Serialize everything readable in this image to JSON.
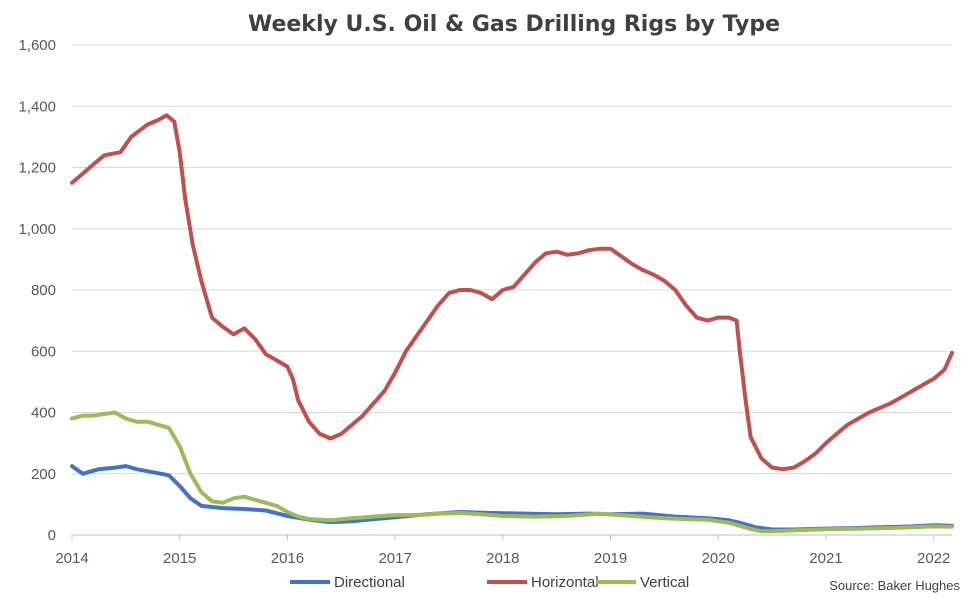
{
  "chart_data": {
    "type": "line",
    "title": "Weekly U.S. Oil & Gas Drilling Rigs by Type",
    "source": "Source: Baker Hughes",
    "xlabel": "",
    "ylabel": "",
    "xlim": [
      2014,
      2022.17
    ],
    "ylim": [
      0,
      1600
    ],
    "x_ticks": [
      2014,
      2015,
      2016,
      2017,
      2018,
      2019,
      2020,
      2021,
      2022
    ],
    "y_ticks": [
      0,
      200,
      400,
      600,
      800,
      1000,
      1200,
      1400,
      1600
    ],
    "y_tick_labels": [
      "0",
      "200",
      "400",
      "600",
      "800",
      "1,000",
      "1,200",
      "1,400",
      "1,600"
    ],
    "grid": "horizontal",
    "legend": "bottom",
    "series": [
      {
        "name": "Directional",
        "color": "#4472C4",
        "points": [
          [
            2014.0,
            225
          ],
          [
            2014.1,
            200
          ],
          [
            2014.25,
            215
          ],
          [
            2014.4,
            220
          ],
          [
            2014.5,
            225
          ],
          [
            2014.6,
            215
          ],
          [
            2014.75,
            205
          ],
          [
            2014.9,
            195
          ],
          [
            2015.0,
            160
          ],
          [
            2015.1,
            120
          ],
          [
            2015.2,
            95
          ],
          [
            2015.4,
            88
          ],
          [
            2015.6,
            85
          ],
          [
            2015.8,
            80
          ],
          [
            2016.0,
            62
          ],
          [
            2016.2,
            50
          ],
          [
            2016.4,
            42
          ],
          [
            2016.6,
            45
          ],
          [
            2016.8,
            52
          ],
          [
            2017.0,
            58
          ],
          [
            2017.3,
            68
          ],
          [
            2017.6,
            75
          ],
          [
            2017.9,
            72
          ],
          [
            2018.2,
            70
          ],
          [
            2018.5,
            68
          ],
          [
            2018.8,
            70
          ],
          [
            2019.0,
            68
          ],
          [
            2019.3,
            70
          ],
          [
            2019.6,
            60
          ],
          [
            2019.9,
            55
          ],
          [
            2020.1,
            48
          ],
          [
            2020.2,
            40
          ],
          [
            2020.35,
            25
          ],
          [
            2020.5,
            18
          ],
          [
            2020.7,
            18
          ],
          [
            2020.9,
            20
          ],
          [
            2021.2,
            22
          ],
          [
            2021.5,
            25
          ],
          [
            2021.8,
            28
          ],
          [
            2022.0,
            32
          ],
          [
            2022.17,
            30
          ]
        ]
      },
      {
        "name": "Horizontal",
        "color": "#C0504D",
        "points": [
          [
            2014.0,
            1150
          ],
          [
            2014.1,
            1180
          ],
          [
            2014.2,
            1210
          ],
          [
            2014.3,
            1240
          ],
          [
            2014.45,
            1250
          ],
          [
            2014.55,
            1300
          ],
          [
            2014.7,
            1340
          ],
          [
            2014.8,
            1355
          ],
          [
            2014.88,
            1370
          ],
          [
            2014.95,
            1350
          ],
          [
            2015.0,
            1250
          ],
          [
            2015.05,
            1100
          ],
          [
            2015.12,
            950
          ],
          [
            2015.2,
            830
          ],
          [
            2015.3,
            710
          ],
          [
            2015.4,
            680
          ],
          [
            2015.5,
            655
          ],
          [
            2015.6,
            675
          ],
          [
            2015.7,
            640
          ],
          [
            2015.8,
            590
          ],
          [
            2015.9,
            570
          ],
          [
            2016.0,
            550
          ],
          [
            2016.05,
            510
          ],
          [
            2016.1,
            440
          ],
          [
            2016.2,
            370
          ],
          [
            2016.3,
            330
          ],
          [
            2016.4,
            315
          ],
          [
            2016.5,
            330
          ],
          [
            2016.6,
            360
          ],
          [
            2016.7,
            390
          ],
          [
            2016.8,
            430
          ],
          [
            2016.9,
            470
          ],
          [
            2017.0,
            530
          ],
          [
            2017.1,
            600
          ],
          [
            2017.2,
            650
          ],
          [
            2017.3,
            700
          ],
          [
            2017.4,
            750
          ],
          [
            2017.5,
            790
          ],
          [
            2017.6,
            800
          ],
          [
            2017.7,
            800
          ],
          [
            2017.8,
            790
          ],
          [
            2017.9,
            770
          ],
          [
            2018.0,
            800
          ],
          [
            2018.1,
            810
          ],
          [
            2018.2,
            850
          ],
          [
            2018.3,
            890
          ],
          [
            2018.4,
            920
          ],
          [
            2018.5,
            925
          ],
          [
            2018.6,
            915
          ],
          [
            2018.7,
            920
          ],
          [
            2018.8,
            930
          ],
          [
            2018.9,
            935
          ],
          [
            2019.0,
            935
          ],
          [
            2019.1,
            910
          ],
          [
            2019.2,
            885
          ],
          [
            2019.3,
            865
          ],
          [
            2019.4,
            850
          ],
          [
            2019.5,
            830
          ],
          [
            2019.6,
            800
          ],
          [
            2019.7,
            750
          ],
          [
            2019.8,
            710
          ],
          [
            2019.9,
            700
          ],
          [
            2020.0,
            710
          ],
          [
            2020.1,
            710
          ],
          [
            2020.17,
            700
          ],
          [
            2020.2,
            600
          ],
          [
            2020.25,
            450
          ],
          [
            2020.3,
            320
          ],
          [
            2020.4,
            250
          ],
          [
            2020.5,
            220
          ],
          [
            2020.6,
            215
          ],
          [
            2020.7,
            220
          ],
          [
            2020.8,
            240
          ],
          [
            2020.9,
            265
          ],
          [
            2021.0,
            300
          ],
          [
            2021.1,
            330
          ],
          [
            2021.2,
            360
          ],
          [
            2021.3,
            380
          ],
          [
            2021.4,
            400
          ],
          [
            2021.5,
            415
          ],
          [
            2021.6,
            430
          ],
          [
            2021.7,
            450
          ],
          [
            2021.8,
            470
          ],
          [
            2021.9,
            490
          ],
          [
            2022.0,
            510
          ],
          [
            2022.1,
            540
          ],
          [
            2022.17,
            595
          ]
        ]
      },
      {
        "name": "Vertical",
        "color": "#9BBB59",
        "points": [
          [
            2014.0,
            380
          ],
          [
            2014.1,
            390
          ],
          [
            2014.2,
            390
          ],
          [
            2014.3,
            395
          ],
          [
            2014.4,
            400
          ],
          [
            2014.5,
            380
          ],
          [
            2014.6,
            370
          ],
          [
            2014.7,
            370
          ],
          [
            2014.8,
            360
          ],
          [
            2014.9,
            350
          ],
          [
            2015.0,
            290
          ],
          [
            2015.1,
            200
          ],
          [
            2015.2,
            140
          ],
          [
            2015.3,
            110
          ],
          [
            2015.4,
            105
          ],
          [
            2015.5,
            120
          ],
          [
            2015.6,
            125
          ],
          [
            2015.7,
            115
          ],
          [
            2015.8,
            105
          ],
          [
            2015.9,
            95
          ],
          [
            2016.0,
            75
          ],
          [
            2016.1,
            60
          ],
          [
            2016.2,
            52
          ],
          [
            2016.4,
            48
          ],
          [
            2016.6,
            55
          ],
          [
            2016.8,
            60
          ],
          [
            2017.0,
            65
          ],
          [
            2017.2,
            65
          ],
          [
            2017.4,
            70
          ],
          [
            2017.6,
            72
          ],
          [
            2017.8,
            68
          ],
          [
            2018.0,
            62
          ],
          [
            2018.3,
            60
          ],
          [
            2018.6,
            62
          ],
          [
            2018.9,
            70
          ],
          [
            2019.2,
            62
          ],
          [
            2019.5,
            55
          ],
          [
            2019.7,
            52
          ],
          [
            2019.9,
            50
          ],
          [
            2020.1,
            40
          ],
          [
            2020.2,
            30
          ],
          [
            2020.3,
            20
          ],
          [
            2020.4,
            12
          ],
          [
            2020.5,
            12
          ],
          [
            2020.7,
            15
          ],
          [
            2020.9,
            18
          ],
          [
            2021.2,
            20
          ],
          [
            2021.5,
            22
          ],
          [
            2021.8,
            25
          ],
          [
            2022.0,
            28
          ],
          [
            2022.17,
            27
          ]
        ]
      }
    ]
  }
}
